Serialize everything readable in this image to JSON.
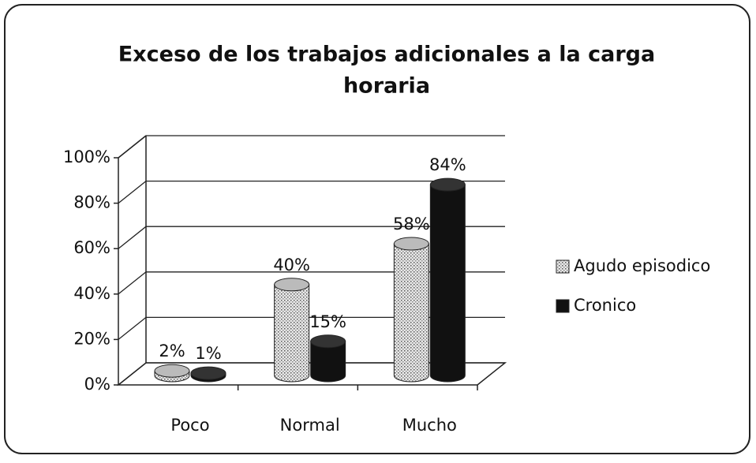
{
  "chart_data": {
    "type": "bar3d",
    "title": "Exceso de los trabajos adicionales a la carga horaria",
    "categories": [
      "Poco",
      "Normal",
      "Mucho"
    ],
    "series": [
      {
        "name": "Agudo episodico",
        "color": "#c8c8c8",
        "values": [
          2,
          40,
          58
        ],
        "value_labels": [
          "2%",
          "40%",
          "58%"
        ]
      },
      {
        "name": "Cronico",
        "color": "#111111",
        "values": [
          1,
          15,
          84
        ],
        "value_labels": [
          "1%",
          "15%",
          "84%"
        ]
      }
    ],
    "ylim": [
      0,
      100
    ],
    "yticks": [
      {
        "value": 0,
        "label": "0%"
      },
      {
        "value": 20,
        "label": "20%"
      },
      {
        "value": 40,
        "label": "40%"
      },
      {
        "value": 60,
        "label": "60%"
      },
      {
        "value": 80,
        "label": "80%"
      },
      {
        "value": 100,
        "label": "100%"
      }
    ],
    "grid": true,
    "legend": "right"
  }
}
